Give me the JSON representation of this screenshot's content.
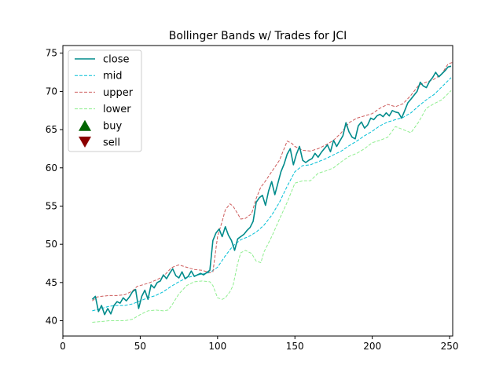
{
  "chart_data": {
    "type": "line",
    "title": "Bollinger Bands w/ Trades for JCI",
    "xlabel": "",
    "ylabel": "",
    "xlim": [
      0,
      252
    ],
    "ylim": [
      38,
      76
    ],
    "x_ticks": [
      0,
      50,
      100,
      150,
      200,
      250
    ],
    "y_ticks": [
      40,
      45,
      50,
      55,
      60,
      65,
      70,
      75
    ],
    "x_tick_labels": [
      "0",
      "50",
      "100",
      "150",
      "200",
      "250"
    ],
    "y_tick_labels": [
      "40",
      "45",
      "50",
      "55",
      "60",
      "65",
      "70",
      "75"
    ],
    "grid": false,
    "legend_placement": "upper-left",
    "legend": [
      {
        "key": "close",
        "label": "close",
        "marker": "line-solid",
        "color": "#008b8b"
      },
      {
        "key": "mid",
        "label": "mid",
        "marker": "line-dashed",
        "color": "#00bfd6"
      },
      {
        "key": "upper",
        "label": "upper",
        "marker": "line-dashed",
        "color": "#cd5c5c"
      },
      {
        "key": "lower",
        "label": "lower",
        "marker": "line-dashed",
        "color": "#90ee90"
      },
      {
        "key": "buy",
        "label": "buy",
        "marker": "triangle-up",
        "color": "#006400"
      },
      {
        "key": "sell",
        "label": "sell",
        "marker": "triangle-down",
        "color": "#8b0000"
      }
    ],
    "series": [
      {
        "name": "close",
        "color": "#008b8b",
        "style": "solid",
        "x": [
          19,
          21,
          23,
          25,
          27,
          29,
          31,
          33,
          35,
          37,
          39,
          41,
          43,
          45,
          47,
          49,
          51,
          53,
          55,
          57,
          59,
          61,
          63,
          65,
          67,
          69,
          71,
          73,
          75,
          77,
          79,
          81,
          83,
          85,
          87,
          89,
          91,
          93,
          95,
          97,
          99,
          101,
          103,
          105,
          107,
          109,
          111,
          113,
          115,
          117,
          119,
          121,
          123,
          125,
          127,
          129,
          131,
          133,
          135,
          137,
          139,
          141,
          143,
          145,
          147,
          149,
          151,
          153,
          155,
          157,
          159,
          161,
          163,
          165,
          167,
          169,
          171,
          173,
          175,
          177,
          179,
          181,
          183,
          185,
          187,
          189,
          191,
          193,
          195,
          197,
          199,
          201,
          203,
          205,
          207,
          209,
          211,
          213,
          215,
          217,
          219,
          221,
          223,
          225,
          227,
          229,
          231,
          233,
          235,
          237,
          239,
          241,
          243,
          245,
          247,
          249,
          251
        ],
        "y": [
          42.8,
          43.2,
          41.2,
          42.0,
          40.8,
          41.6,
          40.9,
          42.0,
          42.5,
          42.3,
          43.0,
          42.6,
          43.1,
          43.8,
          44.1,
          41.6,
          43.2,
          44.0,
          42.8,
          44.7,
          44.3,
          45.0,
          45.2,
          46.0,
          45.5,
          46.2,
          46.8,
          45.9,
          45.6,
          46.4,
          45.5,
          45.8,
          46.5,
          45.8,
          46.0,
          46.2,
          46.0,
          46.3,
          46.6,
          50.5,
          51.5,
          52.0,
          51.0,
          52.3,
          51.2,
          50.5,
          49.2,
          50.7,
          51.0,
          51.3,
          51.8,
          52.2,
          53.0,
          55.5,
          56.1,
          56.4,
          55.1,
          57.0,
          58.2,
          56.5,
          58.0,
          59.5,
          60.5,
          61.8,
          62.5,
          60.4,
          61.8,
          62.8,
          61.0,
          60.7,
          61.0,
          61.2,
          61.9,
          61.4,
          62.0,
          62.5,
          63.0,
          62.1,
          63.6,
          62.8,
          63.5,
          64.2,
          65.9,
          64.7,
          64.0,
          63.8,
          65.5,
          66.0,
          65.2,
          65.6,
          66.5,
          66.3,
          66.8,
          67.0,
          66.7,
          67.2,
          66.8,
          67.5,
          67.3,
          67.2,
          66.5,
          67.5,
          68.5,
          69.0,
          69.5,
          70.0,
          71.2,
          70.7,
          70.5,
          71.3,
          71.8,
          72.5,
          71.9,
          72.3,
          72.7,
          73.2,
          73.3
        ]
      },
      {
        "name": "mid",
        "color": "#00bfd6",
        "style": "dashed",
        "x": [
          19,
          25,
          30,
          35,
          40,
          45,
          50,
          55,
          60,
          65,
          70,
          75,
          80,
          85,
          90,
          95,
          100,
          105,
          110,
          115,
          120,
          125,
          130,
          135,
          140,
          145,
          150,
          155,
          160,
          165,
          170,
          175,
          180,
          185,
          190,
          195,
          200,
          205,
          210,
          215,
          220,
          225,
          230,
          235,
          240,
          245,
          251
        ],
        "y": [
          41.3,
          41.6,
          41.9,
          42.0,
          42.0,
          42.2,
          42.6,
          43.0,
          43.3,
          43.8,
          44.5,
          45.1,
          45.6,
          45.9,
          46.1,
          46.3,
          47.0,
          48.5,
          49.8,
          50.6,
          51.0,
          51.6,
          52.5,
          53.8,
          55.5,
          57.6,
          59.5,
          60.3,
          60.4,
          60.8,
          61.2,
          61.7,
          62.2,
          62.9,
          63.5,
          64.2,
          64.8,
          65.5,
          66.0,
          66.3,
          66.6,
          67.2,
          68.1,
          68.9,
          69.6,
          70.6,
          71.8
        ]
      },
      {
        "name": "upper",
        "color": "#cd5c5c",
        "style": "dashed",
        "x": [
          19,
          22,
          25,
          30,
          35,
          40,
          45,
          48,
          50,
          55,
          60,
          65,
          70,
          72,
          75,
          80,
          85,
          90,
          95,
          97,
          100,
          103,
          105,
          108,
          110,
          113,
          115,
          118,
          120,
          122,
          125,
          128,
          130,
          135,
          140,
          143,
          145,
          148,
          150,
          155,
          160,
          165,
          170,
          175,
          180,
          185,
          190,
          195,
          200,
          205,
          210,
          215,
          220,
          225,
          230,
          235,
          240,
          245,
          249,
          252
        ],
        "y": [
          42.6,
          43.1,
          43.2,
          43.3,
          43.3,
          43.4,
          43.9,
          44.5,
          44.6,
          44.9,
          45.3,
          45.8,
          46.9,
          47.1,
          47.3,
          47.0,
          46.7,
          46.6,
          46.3,
          46.4,
          51.0,
          53.0,
          54.5,
          55.3,
          55.0,
          54.0,
          53.3,
          53.4,
          53.7,
          54.0,
          56.0,
          57.5,
          58.0,
          59.5,
          61.0,
          62.5,
          63.5,
          63.2,
          62.8,
          62.3,
          62.2,
          62.5,
          63.0,
          63.6,
          64.6,
          65.9,
          66.5,
          66.8,
          67.1,
          67.8,
          68.3,
          68.0,
          68.4,
          69.5,
          70.8,
          71.2,
          71.6,
          72.3,
          73.6,
          73.8
        ]
      },
      {
        "name": "lower",
        "color": "#90ee90",
        "style": "dashed",
        "x": [
          19,
          25,
          30,
          35,
          40,
          45,
          50,
          52,
          55,
          60,
          65,
          68,
          70,
          75,
          80,
          85,
          90,
          95,
          97,
          100,
          103,
          105,
          108,
          110,
          113,
          115,
          118,
          120,
          122,
          125,
          128,
          130,
          135,
          140,
          145,
          150,
          155,
          160,
          165,
          170,
          175,
          180,
          185,
          190,
          195,
          200,
          205,
          210,
          215,
          220,
          225,
          230,
          235,
          240,
          245,
          251
        ],
        "y": [
          39.8,
          39.9,
          40.0,
          40.0,
          40.0,
          40.2,
          40.8,
          41.0,
          41.3,
          41.4,
          41.3,
          41.4,
          41.9,
          43.5,
          44.6,
          45.1,
          45.2,
          45.1,
          44.6,
          43.0,
          42.8,
          43.0,
          43.8,
          44.6,
          47.5,
          48.9,
          49.2,
          49.0,
          48.8,
          47.8,
          47.6,
          49.0,
          51.0,
          53.3,
          55.5,
          58.0,
          58.3,
          58.3,
          59.3,
          59.6,
          60.0,
          60.8,
          61.5,
          61.9,
          62.5,
          63.3,
          63.6,
          64.0,
          65.4,
          65.0,
          64.6,
          66.0,
          67.8,
          68.4,
          68.9,
          70.1
        ]
      }
    ],
    "trades": {
      "buy": [],
      "sell": []
    }
  }
}
